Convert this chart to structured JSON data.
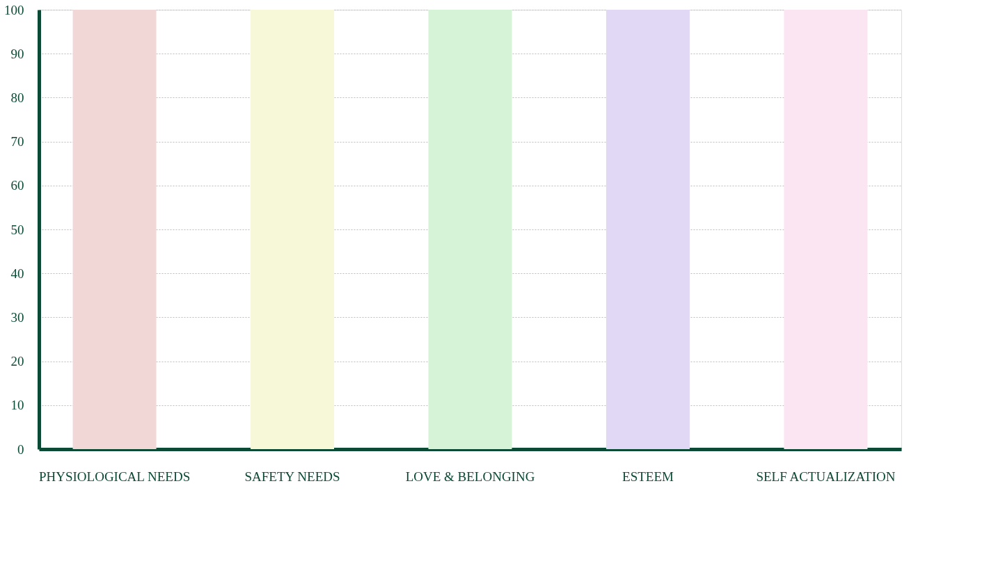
{
  "chart_data": {
    "type": "bar",
    "categories": [
      "PHYSIOLOGICAL NEEDS",
      "SAFETY NEEDS",
      "LOVE & BELONGING",
      "ESTEEM",
      "SELF ACTUALIZATION"
    ],
    "values": [
      100,
      100,
      100,
      100,
      100
    ],
    "colors": [
      "#f2d7d7",
      "#f7f8d8",
      "#d6f3d8",
      "#e0d8f5",
      "#fbe5f3"
    ],
    "ylim": [
      0,
      100
    ],
    "yticks": [
      0,
      10,
      20,
      30,
      40,
      50,
      60,
      70,
      80,
      90,
      100
    ],
    "grid": "y"
  }
}
